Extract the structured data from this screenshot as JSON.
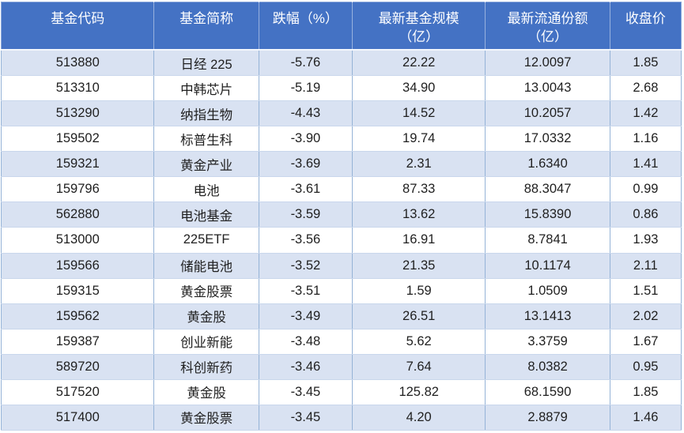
{
  "chart_data": {
    "type": "table",
    "columns": [
      "基金代码",
      "基金简称",
      "跌幅（%）",
      "最新基金规模\n（亿）",
      "最新流通份额\n（亿）",
      "收盘价"
    ],
    "rows": [
      [
        "513880",
        "日经 225",
        "-5.76",
        "22.22",
        "12.0097",
        "1.85"
      ],
      [
        "513310",
        "中韩芯片",
        "-5.19",
        "34.90",
        "13.0043",
        "2.68"
      ],
      [
        "513290",
        "纳指生物",
        "-4.43",
        "14.52",
        "10.2057",
        "1.42"
      ],
      [
        "159502",
        "标普生科",
        "-3.90",
        "19.74",
        "17.0332",
        "1.16"
      ],
      [
        "159321",
        "黄金产业",
        "-3.69",
        "2.31",
        "1.6340",
        "1.41"
      ],
      [
        "159796",
        "电池",
        "-3.61",
        "87.33",
        "88.3047",
        "0.99"
      ],
      [
        "562880",
        "电池基金",
        "-3.59",
        "13.62",
        "15.8390",
        "0.86"
      ],
      [
        "513000",
        "225ETF",
        "-3.56",
        "16.91",
        "8.7841",
        "1.93"
      ],
      [
        "159566",
        "储能电池",
        "-3.52",
        "21.35",
        "10.1174",
        "2.11"
      ],
      [
        "159315",
        "黄金股票",
        "-3.51",
        "1.59",
        "1.0509",
        "1.51"
      ],
      [
        "159562",
        "黄金股",
        "-3.49",
        "26.51",
        "13.1413",
        "2.02"
      ],
      [
        "159387",
        "创业新能",
        "-3.48",
        "5.62",
        "3.3759",
        "1.67"
      ],
      [
        "589720",
        "科创新药",
        "-3.46",
        "7.64",
        "8.0382",
        "0.95"
      ],
      [
        "517520",
        "黄金股",
        "-3.45",
        "125.82",
        "68.1590",
        "1.85"
      ],
      [
        "517400",
        "黄金股票",
        "-3.45",
        "4.20",
        "2.8879",
        "1.46"
      ]
    ]
  },
  "colors": {
    "header_bg": "#4472C4",
    "band_bg": "#D9E2F2",
    "white_row": "#FFFFFF",
    "col_border": "#95B3D7",
    "row_border": "#C9D7EC",
    "outer_border": "#8EAADB",
    "header_text": "#FFFFFF",
    "text": "#1F1F1F"
  }
}
